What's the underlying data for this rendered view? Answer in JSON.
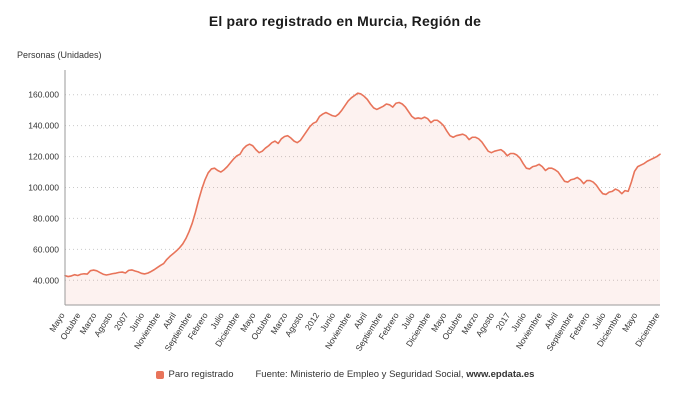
{
  "chart_data": {
    "type": "area",
    "title": "El paro registrado en Murcia, Región de",
    "ylabel": "Personas (Unidades)",
    "xlabel": "",
    "legend_position": "bottom",
    "grid": "horizontal-dotted",
    "ylim": [
      24000,
      176000
    ],
    "y_ticks": [
      40000,
      60000,
      80000,
      100000,
      120000,
      140000,
      160000
    ],
    "y_tick_labels": [
      "40.000",
      "60.000",
      "80.000",
      "100.000",
      "120.000",
      "140.000",
      "160.000"
    ],
    "x_tick_indices": [
      0,
      5,
      10,
      15,
      20,
      25,
      30,
      35,
      40,
      45,
      50,
      55,
      60,
      65,
      70,
      75,
      80,
      85,
      90,
      95,
      100,
      105,
      110,
      115,
      120,
      125,
      130,
      135,
      140,
      145,
      150,
      155,
      160,
      165,
      170,
      175,
      180,
      187
    ],
    "x_tick_labels": [
      "Mayo",
      "Octubre",
      "Marzo",
      "Agosto",
      "2007",
      "Junio",
      "Noviembre",
      "Abril",
      "Septiembre",
      "Febrero",
      "Julio",
      "Diciembre",
      "Mayo",
      "Octubre",
      "Marzo",
      "Agosto",
      "2012",
      "Junio",
      "Noviembre",
      "Abril",
      "Septiembre",
      "Febrero",
      "Julio",
      "Diciembre",
      "Mayo",
      "Octubre",
      "Marzo",
      "Agosto",
      "2017",
      "Junio",
      "Noviembre",
      "Abril",
      "Septiembre",
      "Febrero",
      "Julio",
      "Diciembre",
      "Mayo",
      "Diciembre"
    ],
    "x_range_note": "monthly points from Mayo 2005 to Diciembre 2020",
    "series": [
      {
        "name": "Paro registrado",
        "color": "#e8745a",
        "values": [
          43000,
          42400,
          42800,
          43600,
          43100,
          43900,
          44200,
          44000,
          46200,
          46600,
          46100,
          45000,
          43900,
          43400,
          43800,
          44300,
          44600,
          45100,
          45300,
          44700,
          46400,
          46700,
          46000,
          45400,
          44500,
          44100,
          44600,
          45600,
          46800,
          48200,
          49600,
          50800,
          53500,
          55500,
          57200,
          59000,
          61000,
          63500,
          67000,
          71500,
          77000,
          84000,
          92000,
          99000,
          105000,
          109500,
          112000,
          112500,
          111000,
          110000,
          111500,
          113500,
          116000,
          118500,
          120500,
          121500,
          125000,
          127000,
          128000,
          127000,
          124500,
          122500,
          123500,
          125500,
          127000,
          129000,
          130000,
          128500,
          131500,
          133000,
          133500,
          132000,
          130000,
          129000,
          130500,
          133500,
          136500,
          139500,
          141500,
          142500,
          146000,
          147500,
          148500,
          147500,
          146500,
          146000,
          147500,
          150000,
          153000,
          156000,
          158000,
          159500,
          161000,
          160500,
          159000,
          157000,
          154000,
          151500,
          150500,
          151500,
          152500,
          154000,
          153500,
          152000,
          154500,
          155000,
          154000,
          152000,
          149000,
          146000,
          144500,
          145000,
          144500,
          145500,
          144500,
          142000,
          143500,
          143500,
          142000,
          140000,
          136500,
          133500,
          132500,
          133500,
          134000,
          134500,
          133500,
          131000,
          132500,
          132500,
          131500,
          129500,
          126500,
          123500,
          122500,
          123500,
          124000,
          124500,
          123000,
          120500,
          122000,
          122000,
          121000,
          119000,
          115500,
          112500,
          112000,
          113500,
          114000,
          115000,
          113500,
          111000,
          112500,
          112500,
          111500,
          110000,
          107000,
          104000,
          103500,
          105000,
          105500,
          106500,
          105000,
          102500,
          104500,
          104500,
          103500,
          101500,
          98500,
          96000,
          95500,
          97000,
          97500,
          99000,
          98000,
          96000,
          98000,
          97500,
          103500,
          110500,
          113500,
          114500,
          115500,
          117000,
          118000,
          119000,
          120000,
          121500
        ]
      }
    ]
  },
  "footer": {
    "legend_label": "Paro registrado",
    "source_prefix": "Fuente: Ministerio de Empleo y Seguridad Social, ",
    "source_site": "www.epdata.es"
  },
  "colors": {
    "line": "#e8745a",
    "area": "rgba(232,116,90,0.09)",
    "grid": "#c9c9c9",
    "axis": "#9a9a9a",
    "tick_text": "#333333"
  }
}
